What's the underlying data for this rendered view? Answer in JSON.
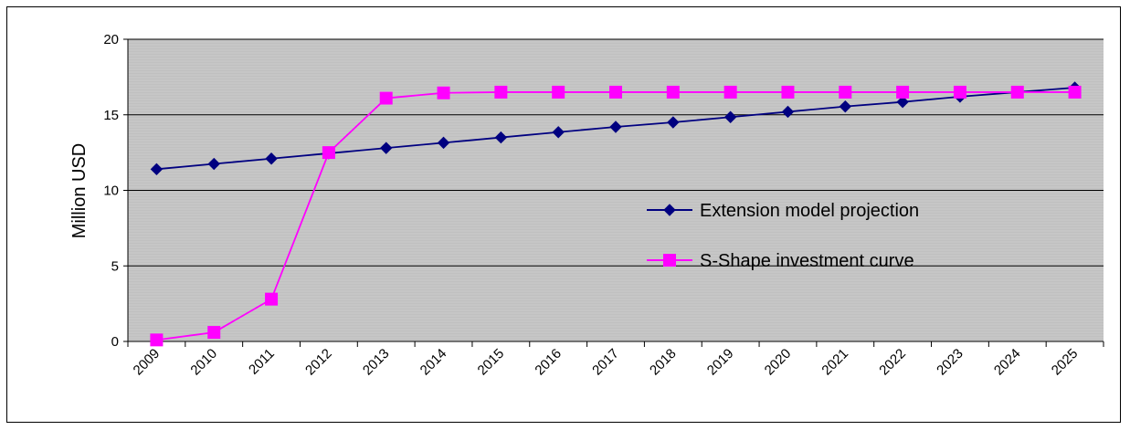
{
  "chart_data": {
    "type": "line",
    "ylabel": "Million USD",
    "xlabel": "",
    "title": "",
    "ylim": [
      0,
      20
    ],
    "yticks": [
      "0",
      "5",
      "10",
      "15",
      "20"
    ],
    "categories": [
      "2009",
      "2010",
      "2011",
      "2012",
      "2013",
      "2014",
      "2015",
      "2016",
      "2017",
      "2018",
      "2019",
      "2020",
      "2021",
      "2022",
      "2023",
      "2024",
      "2025"
    ],
    "grid": "horizontal",
    "legend_position": "center-right",
    "plot_background": "#c0c0c0",
    "series": [
      {
        "name": "Extension model projection",
        "color": "#000080",
        "marker": "diamond",
        "values": [
          11.4,
          11.75,
          12.1,
          12.45,
          12.8,
          13.15,
          13.5,
          13.85,
          14.2,
          14.5,
          14.85,
          15.2,
          15.55,
          15.85,
          16.2,
          16.5,
          16.8
        ]
      },
      {
        "name": "S-Shape investment curve",
        "color": "#ff00ff",
        "marker": "square",
        "values": [
          0.1,
          0.6,
          2.8,
          12.5,
          16.1,
          16.45,
          16.5,
          16.5,
          16.5,
          16.5,
          16.5,
          16.5,
          16.5,
          16.5,
          16.5,
          16.5,
          16.5
        ]
      }
    ]
  }
}
